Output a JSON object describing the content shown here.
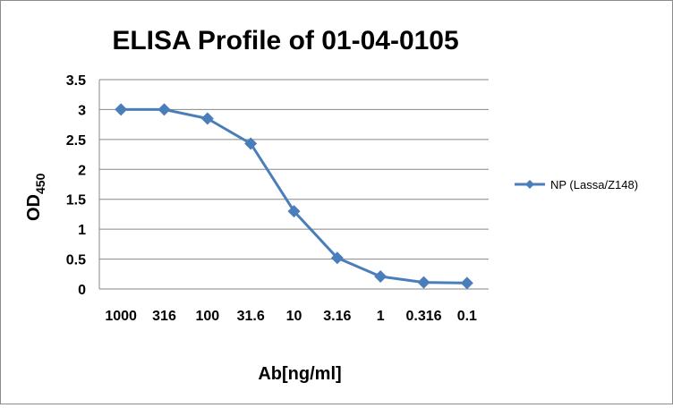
{
  "chart_data": {
    "type": "line",
    "title": "ELISA Profile of 01-04-0105",
    "xlabel": "Ab[ng/ml]",
    "ylabel": "OD",
    "ylabel_subscript": "450",
    "categories": [
      "1000",
      "316",
      "100",
      "31.6",
      "10",
      "3.16",
      "1",
      "0.316",
      "0.1"
    ],
    "series": [
      {
        "name": "NP (Lassa/Z148)",
        "values": [
          3.0,
          3.0,
          2.85,
          2.43,
          1.3,
          0.52,
          0.21,
          0.11,
          0.1
        ],
        "color": "#4a7ebb",
        "marker": "diamond"
      }
    ],
    "ylim": [
      0,
      3.5
    ],
    "yticks": [
      "0",
      "0.5",
      "1",
      "1.5",
      "2",
      "2.5",
      "3",
      "3.5"
    ],
    "grid": true,
    "legend_position": "right"
  }
}
